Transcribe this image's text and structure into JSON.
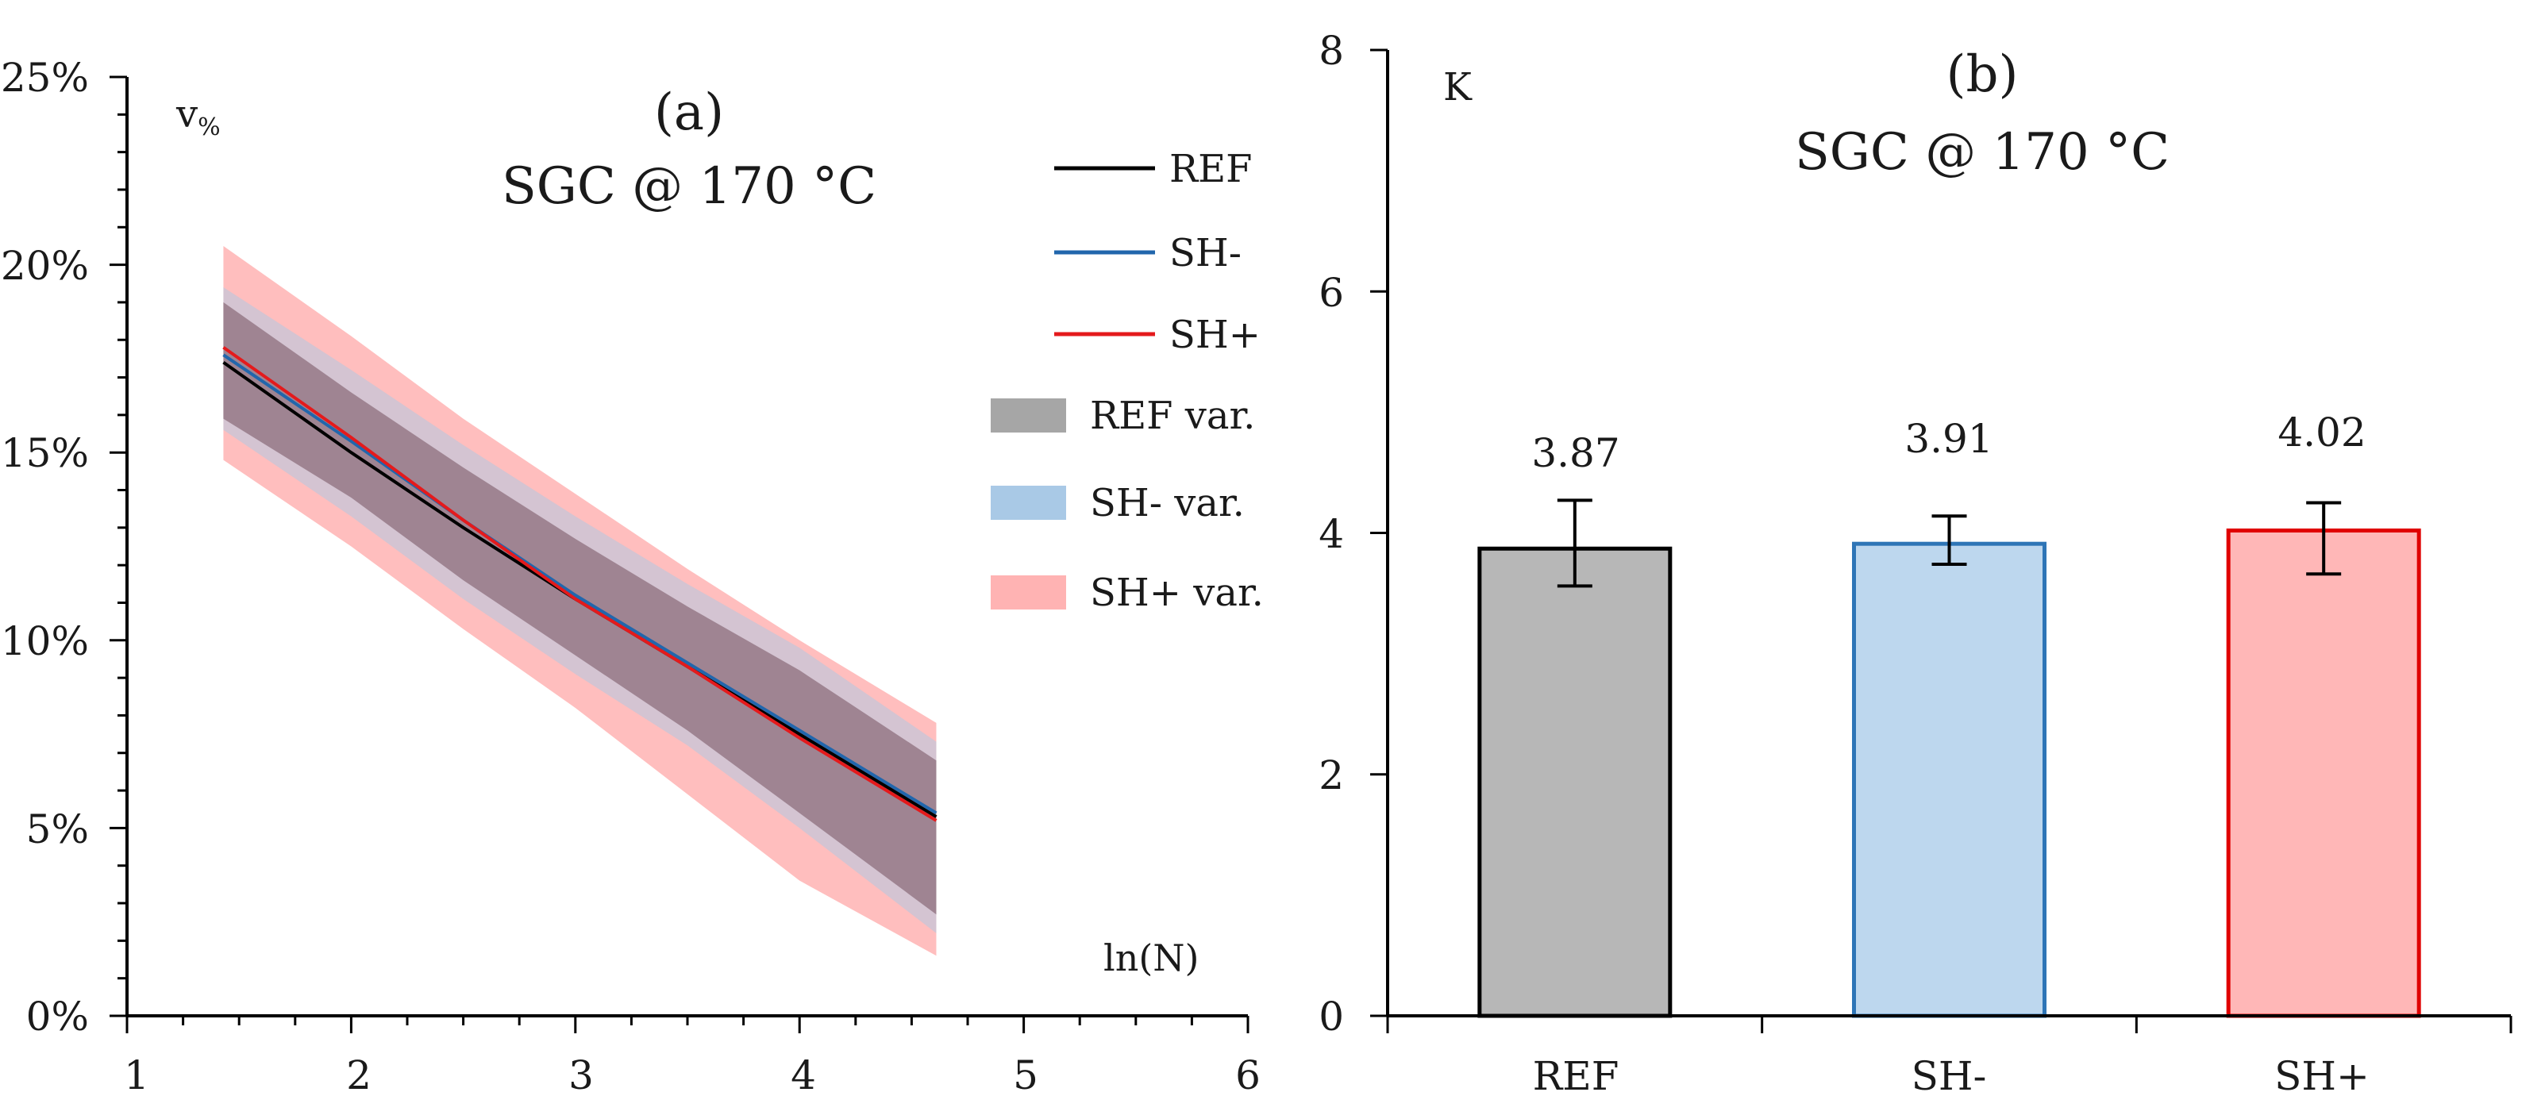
{
  "chart_data": [
    {
      "type": "line",
      "panel_label": "(a)",
      "title": "SGC @ 170 °C",
      "xlabel": "ln(N)",
      "ylabel": "v%",
      "ylabel_main": "v",
      "ylabel_sub": "%",
      "xlim": [
        1,
        6
      ],
      "ylim": [
        0,
        25
      ],
      "x_ticks": [
        "1",
        "2",
        "3",
        "4",
        "5",
        "6"
      ],
      "y_ticks": [
        "0%",
        "5%",
        "10%",
        "15%",
        "20%",
        "25%"
      ],
      "x": [
        1.43,
        2.0,
        2.5,
        3.0,
        3.5,
        4.0,
        4.61
      ],
      "series": [
        {
          "name": "REF",
          "color": "#000000",
          "values": [
            17.4,
            15.0,
            13.0,
            11.1,
            9.3,
            7.5,
            5.3
          ]
        },
        {
          "name": "SH-",
          "color": "#2166ac",
          "values": [
            17.6,
            15.3,
            13.2,
            11.2,
            9.4,
            7.6,
            5.4
          ]
        },
        {
          "name": "SH+",
          "color": "#e41a1c",
          "values": [
            17.8,
            15.4,
            13.2,
            11.1,
            9.3,
            7.4,
            5.2
          ]
        }
      ],
      "bands": [
        {
          "name": "REF var.",
          "color": "#a6a6a6",
          "lower": [
            15.9,
            13.8,
            11.6,
            9.6,
            7.6,
            5.4,
            2.7
          ],
          "upper": [
            19.0,
            16.6,
            14.6,
            12.7,
            10.9,
            9.2,
            6.8
          ]
        },
        {
          "name": "SH- var.",
          "color": "#a9c9e6",
          "lower": [
            15.6,
            13.3,
            11.1,
            9.1,
            7.2,
            5.0,
            2.2
          ],
          "upper": [
            19.4,
            17.2,
            15.2,
            13.3,
            11.5,
            9.8,
            7.3
          ]
        },
        {
          "name": "SH+ var.",
          "color": "#ffb3b3",
          "lower": [
            14.8,
            12.5,
            10.3,
            8.2,
            5.9,
            3.6,
            1.6
          ],
          "upper": [
            20.5,
            18.1,
            15.9,
            13.9,
            11.9,
            10.0,
            7.8
          ]
        }
      ],
      "legend": {
        "position": "top-right",
        "lines": [
          "REF",
          "SH-",
          "SH+"
        ],
        "bands": [
          "REF var.",
          "SH- var.",
          "SH+ var."
        ]
      }
    },
    {
      "type": "bar",
      "panel_label": "(b)",
      "title": "SGC @ 170 °C",
      "ylabel": "K",
      "categories": [
        "REF",
        "SH-",
        "SH+"
      ],
      "values": [
        3.87,
        3.91,
        4.02
      ],
      "value_labels": [
        "3.87",
        "3.91",
        "4.02"
      ],
      "error_low": [
        3.56,
        3.74,
        3.66
      ],
      "error_high": [
        4.27,
        4.14,
        4.25
      ],
      "fill_colors": [
        "#b7b7b7",
        "#bdd7ee",
        "#ffb7b7"
      ],
      "edge_colors": [
        "#000000",
        "#2e75b6",
        "#e00000"
      ],
      "ylim": [
        0,
        8
      ],
      "y_ticks": [
        "0",
        "2",
        "4",
        "6",
        "8"
      ]
    }
  ]
}
